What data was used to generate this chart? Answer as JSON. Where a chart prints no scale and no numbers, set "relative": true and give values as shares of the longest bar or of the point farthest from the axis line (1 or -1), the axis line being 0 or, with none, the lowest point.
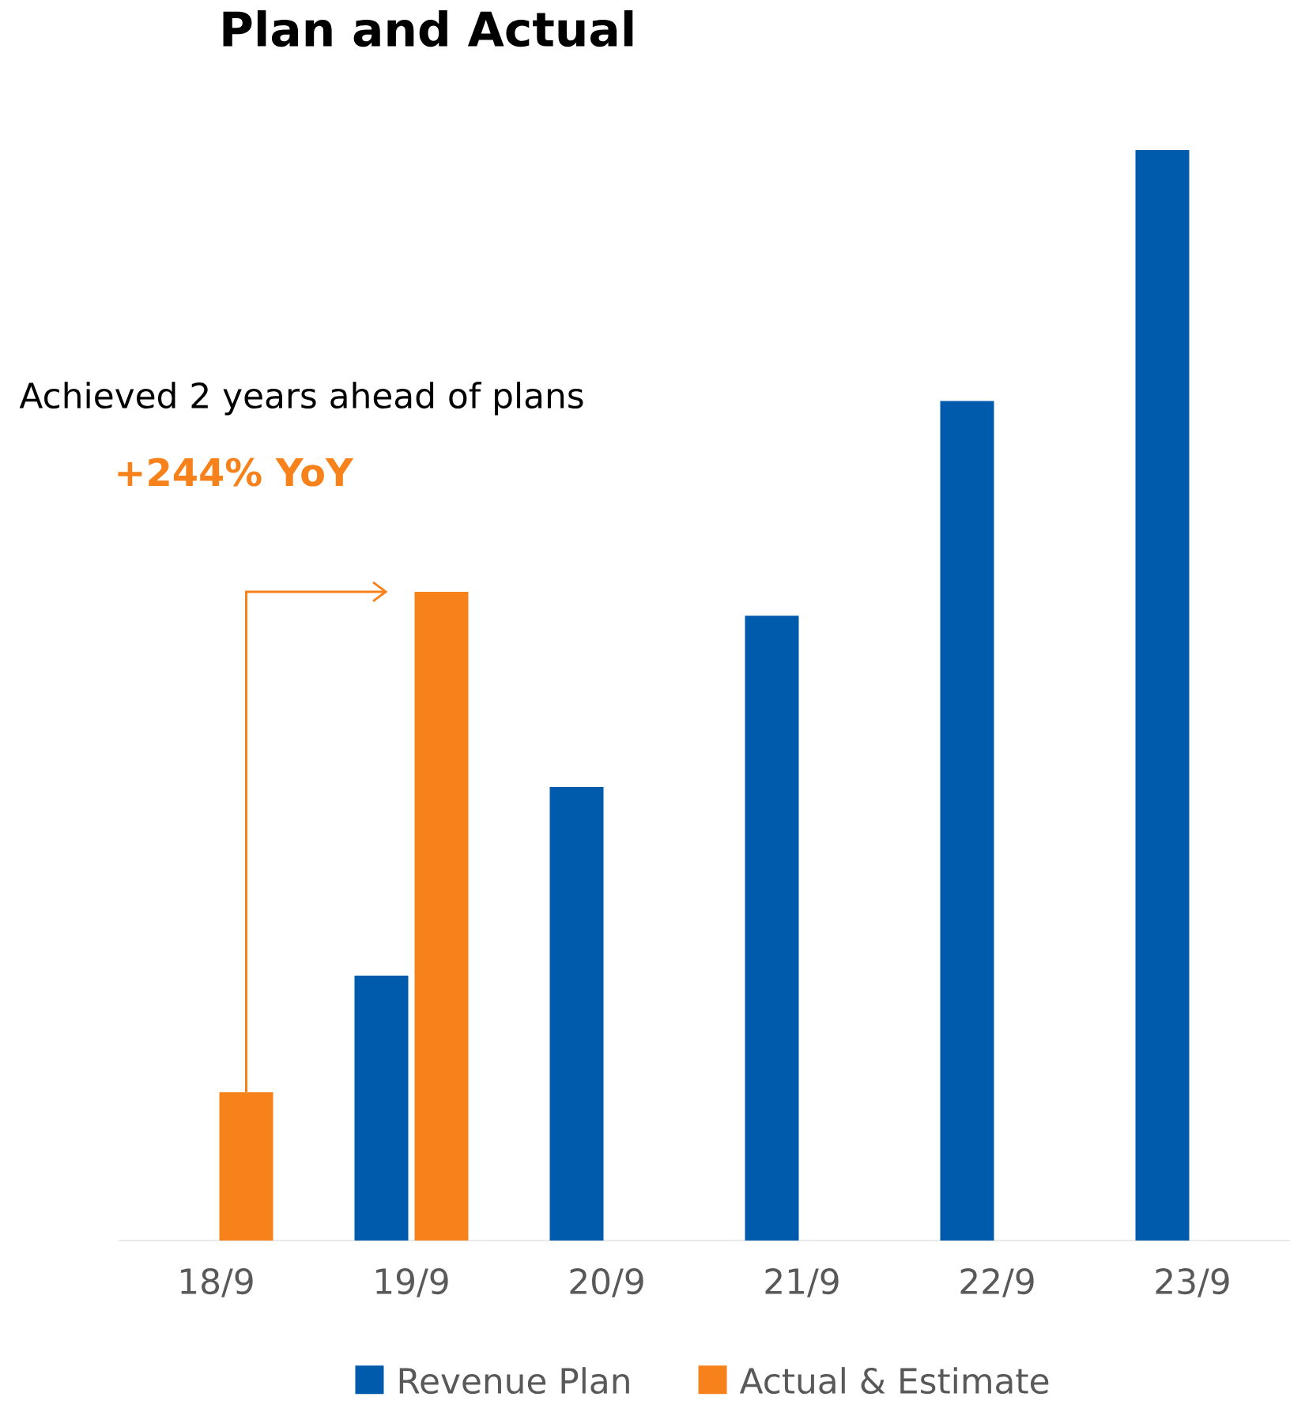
{
  "chart_data": {
    "type": "bar",
    "title": "Plan and Actual",
    "relative": true,
    "categories": [
      "18/9",
      "19/9",
      "20/9",
      "21/9",
      "22/9",
      "23/9"
    ],
    "series": [
      {
        "name": "Revenue Plan",
        "color": "#005bac",
        "values": [
          null,
          0.243,
          0.416,
          0.573,
          0.77,
          1
        ]
      },
      {
        "name": "Actual & Estimate",
        "color": "#f7821b",
        "values": [
          0.136,
          0.595,
          null,
          null,
          null,
          null
        ]
      }
    ],
    "annotations": [
      "Achieved 2 years ahead of plans",
      "+244% YoY"
    ],
    "legend": "bottom"
  }
}
